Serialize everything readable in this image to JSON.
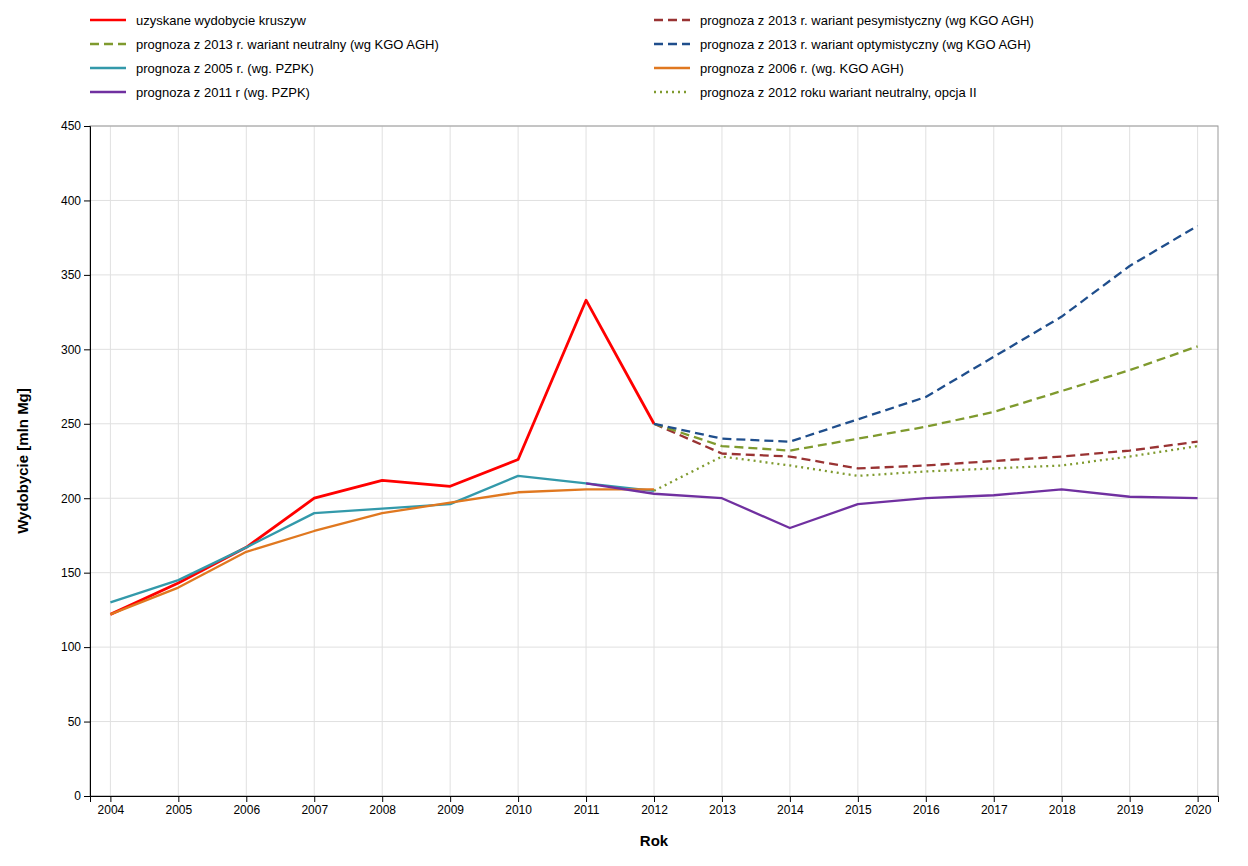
{
  "chart_data": {
    "type": "line",
    "xlabel": "Rok",
    "ylabel": "Wydobycie [mln Mg]",
    "xlim": [
      2003.7,
      2020.3
    ],
    "xticks": [
      2004,
      2005,
      2006,
      2007,
      2008,
      2009,
      2010,
      2011,
      2012,
      2013,
      2014,
      2015,
      2016,
      2017,
      2018,
      2019,
      2020
    ],
    "ylim": [
      0,
      450
    ],
    "yticks": [
      0,
      50,
      100,
      150,
      200,
      250,
      300,
      350,
      400,
      450
    ],
    "grid": true,
    "legend": "top",
    "series": [
      {
        "name": "uzyskane wydobycie kruszyw",
        "color": "#ff0000",
        "line_style": "solid",
        "x": [
          2004,
          2005,
          2006,
          2007,
          2008,
          2009,
          2010,
          2011,
          2012
        ],
        "values": [
          122,
          143,
          167,
          200,
          212,
          208,
          226,
          333,
          250
        ]
      },
      {
        "name": "prognoza z 2013 r. wariant pesymistyczny (wg KGO AGH)",
        "color": "#993333",
        "line_style": "dashed",
        "x": [
          2012,
          2013,
          2014,
          2015,
          2016,
          2017,
          2018,
          2019,
          2020
        ],
        "values": [
          250,
          230,
          228,
          220,
          222,
          225,
          228,
          232,
          238
        ]
      },
      {
        "name": "prognoza z 2013 r. wariant neutralny (wg KGO AGH)",
        "color": "#7f9a2e",
        "line_style": "dashed",
        "x": [
          2012,
          2013,
          2014,
          2015,
          2016,
          2017,
          2018,
          2019,
          2020
        ],
        "values": [
          250,
          235,
          232,
          240,
          248,
          258,
          272,
          286,
          302
        ]
      },
      {
        "name": "prognoza z 2013 r. wariant optymistyczny (wg KGO AGH)",
        "color": "#1f4e8c",
        "line_style": "dashed",
        "x": [
          2012,
          2013,
          2014,
          2015,
          2016,
          2017,
          2018,
          2019,
          2020
        ],
        "values": [
          250,
          240,
          238,
          253,
          268,
          295,
          322,
          356,
          383
        ]
      },
      {
        "name": "prognoza z 2005 r. (wg. PZPK)",
        "color": "#3399aa",
        "line_style": "solid",
        "x": [
          2004,
          2005,
          2006,
          2007,
          2008,
          2009,
          2010,
          2011,
          2012
        ],
        "values": [
          130,
          145,
          167,
          190,
          193,
          196,
          215,
          210,
          205
        ]
      },
      {
        "name": "prognoza z 2006 r. (wg. KGO AGH)",
        "color": "#e07820",
        "line_style": "solid",
        "x": [
          2004,
          2005,
          2006,
          2007,
          2008,
          2009,
          2010,
          2011,
          2012
        ],
        "values": [
          122,
          140,
          164,
          178,
          190,
          197,
          204,
          206,
          206
        ]
      },
      {
        "name": "prognoza z 2011 r (wg. PZPK)",
        "color": "#7030a0",
        "line_style": "solid",
        "x": [
          2011,
          2012,
          2013,
          2014,
          2015,
          2016,
          2017,
          2018,
          2019,
          2020
        ],
        "values": [
          210,
          203,
          200,
          180,
          196,
          200,
          202,
          206,
          201,
          200
        ]
      },
      {
        "name": "prognoza z 2012 roku wariant neutralny, opcja II",
        "color": "#7f9a2e",
        "line_style": "dotted",
        "x": [
          2012,
          2013,
          2014,
          2015,
          2016,
          2017,
          2018,
          2019,
          2020
        ],
        "values": [
          205,
          228,
          222,
          215,
          218,
          220,
          222,
          228,
          235
        ]
      }
    ]
  }
}
